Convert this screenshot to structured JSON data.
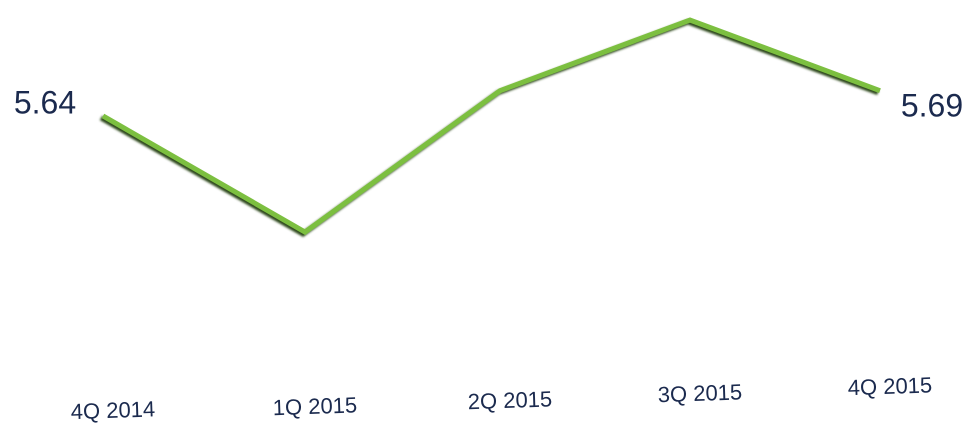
{
  "chart_data": {
    "type": "line",
    "categories": [
      "4Q 2014",
      "1Q 2015",
      "2Q 2015",
      "3Q 2015",
      "4Q 2015"
    ],
    "values": [
      5.64,
      5.41,
      5.69,
      5.83,
      5.69
    ],
    "color": "#7cbf3f"
  }
}
